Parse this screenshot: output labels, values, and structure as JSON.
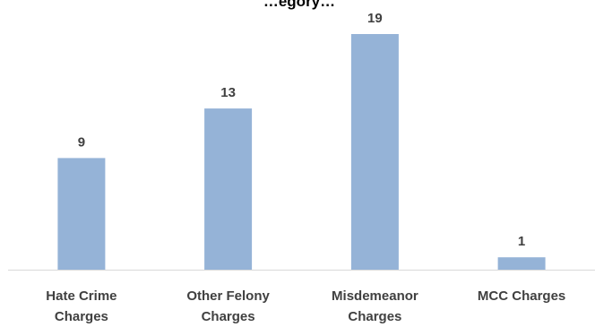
{
  "chart_data": {
    "type": "bar",
    "title": "…egory…",
    "categories": [
      [
        "Hate Crime",
        "Charges"
      ],
      [
        "Other Felony",
        "Charges"
      ],
      [
        "Misdemeanor",
        "Charges"
      ],
      [
        "MCC Charges"
      ]
    ],
    "values": [
      9,
      13,
      19,
      1
    ],
    "xlabel": "",
    "ylabel": "",
    "ylim": [
      0,
      19
    ],
    "grid": false,
    "legend": "none",
    "colors": {
      "bar": "#95b3d7",
      "label_text": "#404040",
      "axis": "#d9d9d9"
    }
  }
}
